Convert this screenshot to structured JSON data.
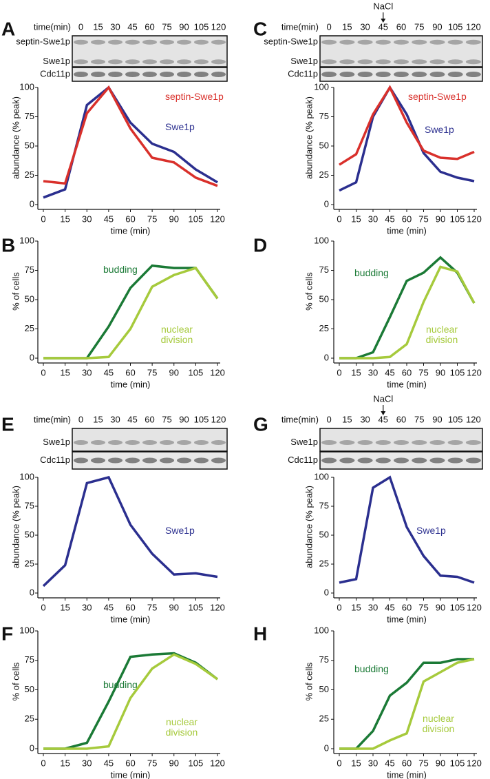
{
  "chart_data": [
    {
      "panel": "A",
      "type": "line",
      "blot": {
        "time_label": "time(min)",
        "times": [
          0,
          15,
          30,
          45,
          60,
          75,
          90,
          105,
          120
        ],
        "rows": [
          "septin-Swe1p",
          "Swe1p",
          "Cdc11p"
        ]
      },
      "x": [
        0,
        15,
        30,
        45,
        60,
        75,
        90,
        105,
        120
      ],
      "xlim": [
        0,
        120
      ],
      "xticks": [
        0,
        15,
        30,
        45,
        60,
        75,
        90,
        105,
        120
      ],
      "ylim": [
        0,
        100
      ],
      "yticks": [
        0,
        25,
        50,
        75,
        100
      ],
      "xlabel": "time (min)",
      "ylabel": "abundance (% peak)",
      "series": [
        {
          "name": "Swe1p",
          "color": "#2b2f8f",
          "values": [
            6,
            13,
            85,
            100,
            70,
            52,
            45,
            30,
            19
          ]
        },
        {
          "name": "septin-Swe1p",
          "color": "#d9302b",
          "values": [
            20,
            18,
            78,
            100,
            65,
            40,
            36,
            23,
            16
          ]
        }
      ]
    },
    {
      "panel": "B",
      "type": "line",
      "x": [
        0,
        15,
        30,
        45,
        60,
        75,
        90,
        105,
        120
      ],
      "xlim": [
        0,
        120
      ],
      "xticks": [
        0,
        15,
        30,
        45,
        60,
        75,
        90,
        105,
        120
      ],
      "ylim": [
        0,
        100
      ],
      "yticks": [
        0,
        25,
        50,
        75,
        100
      ],
      "xlabel": "time (min)",
      "ylabel": "% of cells",
      "series": [
        {
          "name": "budding",
          "color": "#1b7a36",
          "values": [
            0,
            0,
            0,
            27,
            60,
            79,
            77,
            77,
            51
          ]
        },
        {
          "name": "nuclear division",
          "color": "#a6ca3c",
          "values": [
            0,
            0,
            0,
            1,
            25,
            61,
            71,
            77,
            51
          ]
        }
      ]
    },
    {
      "panel": "C",
      "type": "line",
      "blot": {
        "time_label": "time(min)",
        "times": [
          0,
          15,
          30,
          45,
          60,
          75,
          90,
          105,
          120
        ],
        "rows": [
          "septin-Swe1p",
          "Swe1p",
          "Cdc11p"
        ],
        "annotation": "NaCl"
      },
      "x": [
        0,
        15,
        30,
        45,
        60,
        75,
        90,
        105,
        120
      ],
      "xlim": [
        0,
        120
      ],
      "xticks": [
        0,
        15,
        30,
        45,
        60,
        75,
        90,
        105,
        120
      ],
      "ylim": [
        0,
        100
      ],
      "yticks": [
        0,
        25,
        50,
        75,
        100
      ],
      "xlabel": "time (min)",
      "ylabel": "abundance (% peak)",
      "series": [
        {
          "name": "Swe1p",
          "color": "#2b2f8f",
          "values": [
            12,
            19,
            75,
            100,
            77,
            44,
            28,
            23,
            20
          ]
        },
        {
          "name": "septin-Swe1p",
          "color": "#d9302b",
          "values": [
            34,
            43,
            77,
            100,
            70,
            46,
            40,
            39,
            45
          ]
        }
      ]
    },
    {
      "panel": "D",
      "type": "line",
      "x": [
        0,
        15,
        30,
        45,
        60,
        75,
        90,
        105,
        120
      ],
      "xlim": [
        0,
        120
      ],
      "xticks": [
        0,
        15,
        30,
        45,
        60,
        75,
        90,
        105,
        120
      ],
      "ylim": [
        0,
        100
      ],
      "yticks": [
        0,
        25,
        50,
        75,
        100
      ],
      "xlabel": "time (min)",
      "ylabel": "% of cells",
      "series": [
        {
          "name": "budding",
          "color": "#1b7a36",
          "values": [
            0,
            0,
            5,
            35,
            66,
            73,
            86,
            73,
            47
          ]
        },
        {
          "name": "nuclear division",
          "color": "#a6ca3c",
          "values": [
            0,
            0,
            0,
            1,
            12,
            48,
            78,
            74,
            47
          ]
        }
      ]
    },
    {
      "panel": "E",
      "type": "line",
      "blot": {
        "time_label": "time(min)",
        "times": [
          0,
          15,
          30,
          45,
          60,
          75,
          90,
          105,
          120
        ],
        "rows": [
          "Swe1p",
          "Cdc11p"
        ]
      },
      "x": [
        0,
        15,
        30,
        45,
        60,
        75,
        90,
        105,
        120
      ],
      "xlim": [
        0,
        120
      ],
      "xticks": [
        0,
        15,
        30,
        45,
        60,
        75,
        90,
        105,
        120
      ],
      "ylim": [
        0,
        100
      ],
      "yticks": [
        0,
        25,
        50,
        75,
        100
      ],
      "xlabel": "time (min)",
      "ylabel": "abundance (% peak)",
      "series": [
        {
          "name": "Swe1p",
          "color": "#2b2f8f",
          "values": [
            6,
            24,
            95,
            100,
            59,
            34,
            16,
            17,
            14
          ]
        }
      ]
    },
    {
      "panel": "F",
      "type": "line",
      "x": [
        0,
        15,
        30,
        45,
        60,
        75,
        90,
        105,
        120
      ],
      "xlim": [
        0,
        120
      ],
      "xticks": [
        0,
        15,
        30,
        45,
        60,
        75,
        90,
        105,
        120
      ],
      "ylim": [
        0,
        100
      ],
      "yticks": [
        0,
        25,
        50,
        75,
        100
      ],
      "xlabel": "time (min)",
      "ylabel": "% of cells",
      "series": [
        {
          "name": "budding",
          "color": "#1b7a36",
          "values": [
            0,
            0,
            5,
            40,
            78,
            80,
            81,
            73,
            59
          ]
        },
        {
          "name": "nuclear division",
          "color": "#a6ca3c",
          "values": [
            0,
            0,
            0,
            2,
            43,
            68,
            80,
            72,
            59
          ]
        }
      ]
    },
    {
      "panel": "G",
      "type": "line",
      "blot": {
        "time_label": "time(min)",
        "times": [
          0,
          15,
          30,
          45,
          60,
          75,
          90,
          105,
          120
        ],
        "rows": [
          "Swe1p",
          "Cdc11p"
        ],
        "annotation": "NaCl"
      },
      "x": [
        0,
        15,
        30,
        45,
        60,
        75,
        90,
        105,
        120
      ],
      "xlim": [
        0,
        120
      ],
      "xticks": [
        0,
        15,
        30,
        45,
        60,
        75,
        90,
        105,
        120
      ],
      "ylim": [
        0,
        100
      ],
      "yticks": [
        0,
        25,
        50,
        75,
        100
      ],
      "xlabel": "time (min)",
      "ylabel": "abundance (% peak)",
      "series": [
        {
          "name": "Swe1p",
          "color": "#2b2f8f",
          "values": [
            9,
            12,
            91,
            100,
            57,
            32,
            15,
            14,
            9
          ]
        }
      ]
    },
    {
      "panel": "H",
      "type": "line",
      "x": [
        0,
        15,
        30,
        45,
        60,
        75,
        90,
        105,
        120
      ],
      "xlim": [
        0,
        120
      ],
      "xticks": [
        0,
        15,
        30,
        45,
        60,
        75,
        90,
        105,
        120
      ],
      "ylim": [
        0,
        100
      ],
      "yticks": [
        0,
        25,
        50,
        75,
        100
      ],
      "xlabel": "time (min)",
      "ylabel": "% of cells",
      "series": [
        {
          "name": "budding",
          "color": "#1b7a36",
          "values": [
            0,
            0,
            15,
            45,
            56,
            73,
            73,
            76,
            76
          ]
        },
        {
          "name": "nuclear division",
          "color": "#a6ca3c",
          "values": [
            0,
            0,
            0,
            7,
            13,
            57,
            65,
            73,
            76
          ]
        }
      ]
    }
  ]
}
